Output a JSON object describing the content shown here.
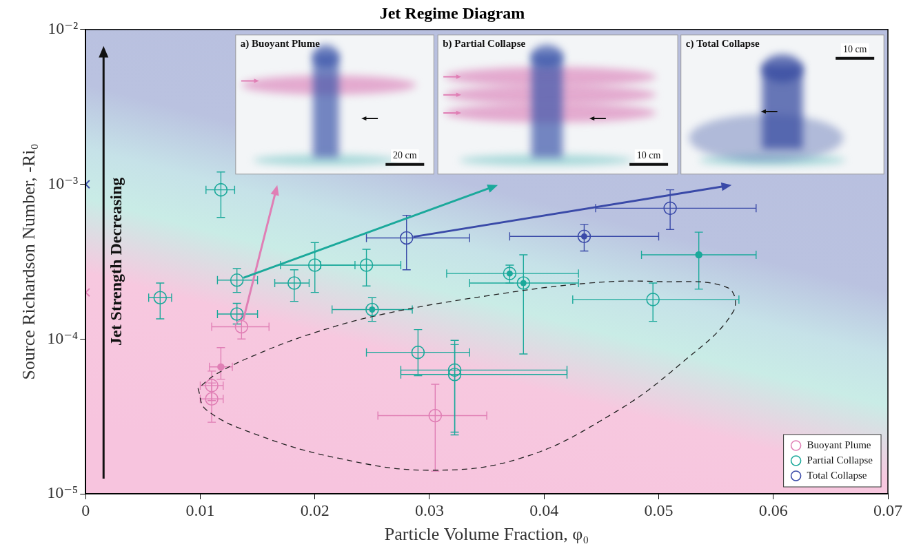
{
  "chart_data": {
    "type": "scatter",
    "title": "Jet Regime Diagram",
    "x_label": "Particle Volume Fraction, φ₀",
    "y_label": "Source Richardson Number, -Ri₀",
    "xlim": [
      0,
      0.07
    ],
    "xticks": [
      0,
      0.01,
      0.02,
      0.03,
      0.04,
      0.05,
      0.06,
      0.07
    ],
    "ylim": [
      1e-05,
      0.01
    ],
    "yticks": [
      {
        "value": 1e-05,
        "label": "10⁻⁵"
      },
      {
        "value": 0.0001,
        "label": "10⁻⁴"
      },
      {
        "value": 0.001,
        "label": "10⁻³"
      },
      {
        "value": 0.01,
        "label": "10⁻²"
      }
    ],
    "log": "y",
    "grid": false,
    "legend": "lower right",
    "series": [
      {
        "name": "Buoyant Plume",
        "color": "#e07fb5",
        "marker": "circle",
        "points": [
          {
            "x": 0.0118,
            "y": 6.6e-05,
            "x_min": 0.0108,
            "x_max": 0.0128,
            "y_min": 5.5e-05,
            "y_max": 8.8e-05,
            "marker": "dot"
          },
          {
            "x": 0.011,
            "y": 5e-05,
            "x_min": 0.01,
            "x_max": 0.012,
            "y_min": 4e-05,
            "y_max": 6.2e-05
          },
          {
            "x": 0.011,
            "y": 4.1e-05,
            "x_min": 0.01,
            "x_max": 0.012,
            "y_min": 2.9e-05,
            "y_max": 5.2e-05
          },
          {
            "x": 0.0305,
            "y": 3.2e-05,
            "x_min": 0.0255,
            "x_max": 0.035,
            "y_min": 1.4e-05,
            "y_max": 5.1e-05
          },
          {
            "x": 0.0136,
            "y": 0.00012,
            "x_min": 0.011,
            "x_max": 0.016,
            "y_min": 0.0001,
            "y_max": 0.000145
          },
          {
            "x": 0,
            "y": 0.0002,
            "marker": "cross"
          }
        ]
      },
      {
        "name": "Partial Collapse",
        "color": "#1ba99b",
        "marker": "circle",
        "points": [
          {
            "x": 0.0065,
            "y": 0.000185,
            "x_min": 0.0055,
            "x_max": 0.0075,
            "y_min": 0.000135,
            "y_max": 0.00023
          },
          {
            "x": 0.0118,
            "y": 0.00092,
            "x_min": 0.0105,
            "x_max": 0.013,
            "y_min": 0.00061,
            "y_max": 0.0012
          },
          {
            "x": 0.0132,
            "y": 0.00024,
            "x_min": 0.0115,
            "x_max": 0.015,
            "y_min": 0.0002,
            "y_max": 0.000285
          },
          {
            "x": 0.0132,
            "y": 0.000145,
            "x_min": 0.0115,
            "x_max": 0.015,
            "y_min": 0.000125,
            "y_max": 0.00017
          },
          {
            "x": 0.0182,
            "y": 0.00023,
            "x_min": 0.0165,
            "x_max": 0.0195,
            "y_min": 0.000175,
            "y_max": 0.00028
          },
          {
            "x": 0.02,
            "y": 0.0003,
            "x_min": 0.017,
            "x_max": 0.0235,
            "y_min": 0.0002,
            "y_max": 0.00042
          },
          {
            "x": 0.0245,
            "y": 0.0003,
            "x_min": 0.0205,
            "x_max": 0.0275,
            "y_min": 0.00022,
            "y_max": 0.00038
          },
          {
            "x": 0.025,
            "y": 0.000155,
            "x_min": 0.0215,
            "x_max": 0.0285,
            "y_min": 0.00013,
            "y_max": 0.000185,
            "marker": "circle_dot"
          },
          {
            "x": 0.029,
            "y": 8.2e-05,
            "x_min": 0.0245,
            "x_max": 0.0335,
            "y_min": 5.8e-05,
            "y_max": 0.000115
          },
          {
            "x": 0.0322,
            "y": 6.3e-05,
            "x_min": 0.0275,
            "x_max": 0.042,
            "y_min": 2.5e-05,
            "y_max": 9.8e-05
          },
          {
            "x": 0.0322,
            "y": 5.9e-05,
            "x_min": 0.0275,
            "x_max": 0.042,
            "y_min": 2.4e-05,
            "y_max": 9.2e-05
          },
          {
            "x": 0.037,
            "y": 0.000265,
            "x_min": 0.0315,
            "x_max": 0.043,
            "y_min": 0.00023,
            "y_max": 0.0003,
            "marker": "circle_dot"
          },
          {
            "x": 0.0382,
            "y": 0.00023,
            "x_min": 0.0335,
            "x_max": 0.043,
            "y_min": 8e-05,
            "y_max": 0.00035,
            "marker": "circle_dot"
          },
          {
            "x": 0.0495,
            "y": 0.00018,
            "x_min": 0.0425,
            "x_max": 0.057,
            "y_min": 0.00013,
            "y_max": 0.00023
          },
          {
            "x": 0.0535,
            "y": 0.00035,
            "x_min": 0.0485,
            "x_max": 0.0585,
            "y_min": 0.00021,
            "y_max": 0.00049,
            "marker": "dot"
          }
        ]
      },
      {
        "name": "Total Collapse",
        "color": "#3a4aa8",
        "marker": "circle",
        "points": [
          {
            "x": 0.028,
            "y": 0.00045,
            "x_min": 0.0245,
            "x_max": 0.0335,
            "y_min": 0.00028,
            "y_max": 0.00063
          },
          {
            "x": 0.0435,
            "y": 0.00046,
            "x_min": 0.037,
            "x_max": 0.05,
            "y_min": 0.00037,
            "y_max": 0.00055,
            "marker": "circle_dot"
          },
          {
            "x": 0.051,
            "y": 0.0007,
            "x_min": 0.0445,
            "x_max": 0.0585,
            "y_min": 0.00051,
            "y_max": 0.00092
          },
          {
            "x": 0,
            "y": 0.001,
            "marker": "cross"
          }
        ]
      }
    ],
    "region": {
      "line_style": "dashed",
      "x": [
        0.0098,
        0.0105,
        0.015,
        0.022,
        0.03,
        0.038,
        0.046,
        0.052,
        0.0565,
        0.056,
        0.05,
        0.044,
        0.035,
        0.026,
        0.02,
        0.015,
        0.0115,
        0.0098
      ],
      "y": [
        4.8e-05,
        3.5e-05,
        2.4e-05,
        1.7e-05,
        1.42e-05,
        1.7e-05,
        3.3e-05,
        7e-05,
        0.00015,
        0.000215,
        0.000235,
        0.00023,
        0.00019,
        0.000145,
        0.00011,
        8e-05,
        6e-05,
        4.8e-05
      ]
    },
    "annotations": {
      "arrow_label": "Jet Strength Decreasing",
      "insets": [
        {
          "title": "a) Buoyant Plume",
          "scale_bar": "20 cm",
          "color": "#e07fb5",
          "from": [
            0.0136,
            0.00012
          ]
        },
        {
          "title": "b) Partial Collapse",
          "scale_bar": "10 cm",
          "color": "#1ba99b",
          "from": [
            0.0132,
            0.00024
          ]
        },
        {
          "title": "c) Total Collapse",
          "scale_bar": "10 cm",
          "color": "#3a4aa8",
          "from": [
            0.028,
            0.00045
          ]
        }
      ]
    }
  }
}
